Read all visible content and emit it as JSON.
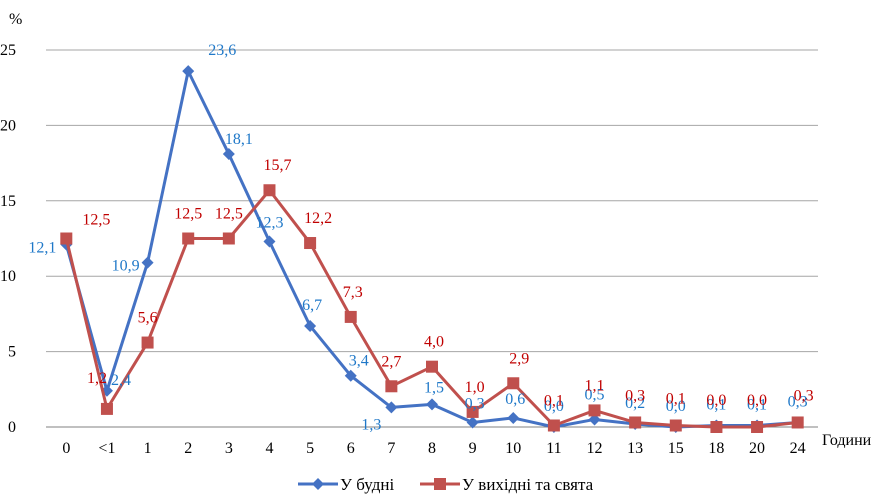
{
  "chart_data": {
    "type": "line",
    "ylabel": "%",
    "xlabel": "Години",
    "categories": [
      "0",
      "<1",
      "1",
      "2",
      "3",
      "4",
      "5",
      "6",
      "7",
      "8",
      "9",
      "10",
      "11",
      "12",
      "13",
      "15",
      "18",
      "20",
      "24"
    ],
    "ylim": [
      0,
      25
    ],
    "yticks": [
      0,
      5,
      10,
      15,
      20,
      25
    ],
    "grid": true,
    "legend_position": "bottom",
    "series": [
      {
        "name": "У будні",
        "color": "#4472C4",
        "label_color": "#1F78C8",
        "marker": "diamond",
        "values": [
          12.1,
          2.4,
          10.9,
          23.6,
          18.1,
          12.3,
          6.7,
          3.4,
          1.3,
          1.5,
          0.3,
          0.6,
          0.0,
          0.5,
          0.2,
          0.0,
          0.1,
          0.1,
          0.3
        ],
        "labels": [
          "12,1",
          "2,4",
          "10,9",
          "23,6",
          "18,1",
          "12,3",
          "6,7",
          "3,4",
          "1,3",
          "1,5",
          "0,3",
          "0,6",
          "0,0",
          "0,5",
          "0,2",
          "0,0",
          "0,1",
          "0,1",
          "0,3"
        ]
      },
      {
        "name": "У вихідні та свята",
        "color": "#C0504D",
        "label_color": "#C00000",
        "marker": "square",
        "values": [
          12.5,
          1.2,
          5.6,
          12.5,
          12.5,
          15.7,
          12.2,
          7.3,
          2.7,
          4.0,
          1.0,
          2.9,
          0.1,
          1.1,
          0.3,
          0.1,
          0.0,
          0.0,
          0.3
        ],
        "labels": [
          "12,5",
          "1,2",
          "5,6",
          "12,5",
          "12,5",
          "15,7",
          "12,2",
          "7,3",
          "2,7",
          "4,0",
          "1,0",
          "2,9",
          "0,1",
          "1,1",
          "0,3",
          "0,1",
          "0,0",
          "0,0",
          "0,3"
        ]
      }
    ]
  }
}
